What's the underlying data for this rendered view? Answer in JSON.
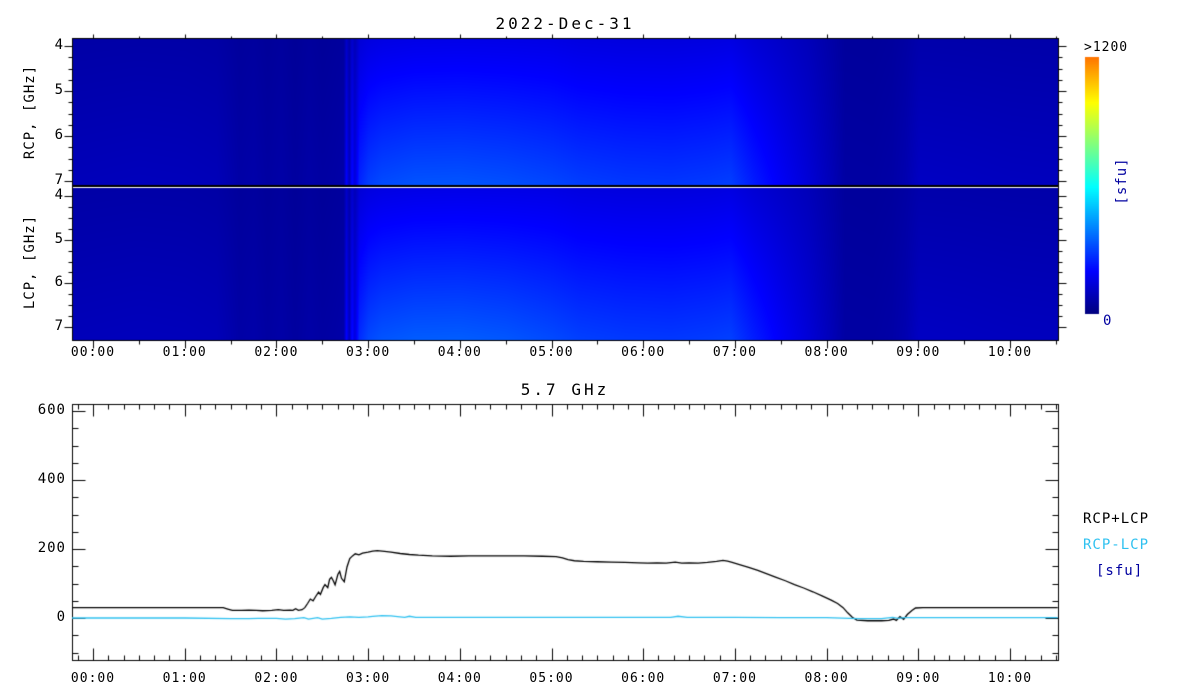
{
  "colors": {
    "background": "#ffffff",
    "axis": "#000000",
    "total_line": "#000000",
    "diff_line": "#2fc1f0",
    "unit_text": "#0000a0",
    "tick_text": "#000000"
  },
  "spectrogram": {
    "title": "2022-Dec-31",
    "rcp_axis_label": "RCP, [GHz]",
    "lcp_axis_label": "LCP, [GHz]",
    "freq_ticks": [
      {
        "f": 4,
        "label": "4"
      },
      {
        "f": 5,
        "label": "5"
      },
      {
        "f": 6,
        "label": "6"
      },
      {
        "f": 7,
        "label": "7"
      }
    ],
    "time_ticks": [
      {
        "h": 0,
        "label": "00:00"
      },
      {
        "h": 1,
        "label": "01:00"
      },
      {
        "h": 2,
        "label": "02:00"
      },
      {
        "h": 3,
        "label": "03:00"
      },
      {
        "h": 4,
        "label": "04:00"
      },
      {
        "h": 5,
        "label": "05:00"
      },
      {
        "h": 6,
        "label": "06:00"
      },
      {
        "h": 7,
        "label": "07:00"
      },
      {
        "h": 8,
        "label": "08:00"
      },
      {
        "h": 9,
        "label": "09:00"
      },
      {
        "h": 10,
        "label": "10:00"
      }
    ],
    "colorbar": {
      "max_label": ">1200",
      "min_label": "0",
      "unit_label": "[sfu]"
    }
  },
  "lineplot": {
    "title": "5.7 GHz",
    "y_ticks": [
      {
        "v": 600,
        "label": "600"
      },
      {
        "v": 400,
        "label": "400"
      },
      {
        "v": 200,
        "label": "200"
      },
      {
        "v": 0,
        "label": "0"
      }
    ],
    "time_ticks": [
      {
        "h": 0,
        "label": "00:00"
      },
      {
        "h": 1,
        "label": "01:00"
      },
      {
        "h": 2,
        "label": "02:00"
      },
      {
        "h": 3,
        "label": "03:00"
      },
      {
        "h": 4,
        "label": "04:00"
      },
      {
        "h": 5,
        "label": "05:00"
      },
      {
        "h": 6,
        "label": "06:00"
      },
      {
        "h": 7,
        "label": "07:00"
      },
      {
        "h": 8,
        "label": "08:00"
      },
      {
        "h": 9,
        "label": "09:00"
      },
      {
        "h": 10,
        "label": "10:00"
      }
    ],
    "legend": {
      "total": "RCP+LCP",
      "diff": "RCP-LCP",
      "unit": "[sfu]"
    }
  },
  "chart_data": [
    {
      "type": "heatmap",
      "title": "2022-Dec-31",
      "x_unit": "time UT (hours)",
      "x_range": [
        -0.24,
        10.52
      ],
      "freq_range_ghz": [
        4,
        7
      ],
      "freq_axis_reversed": true,
      "value_unit": "sfu",
      "color_scale": {
        "min": 0,
        "max": 1200,
        "palette": "jet",
        "max_label": ">1200"
      },
      "time_stops": [
        -0.25,
        0.5,
        1.0,
        1.35,
        1.5,
        1.6,
        1.75,
        1.9,
        2.05,
        2.2,
        2.35,
        2.5,
        2.62,
        2.7,
        2.73,
        2.76,
        2.79,
        2.82,
        2.85,
        2.9,
        3.0,
        3.15,
        3.5,
        4.0,
        4.5,
        5.0,
        5.3,
        5.8,
        6.3,
        6.7,
        6.95,
        7.2,
        7.5,
        7.8,
        8.05,
        8.2,
        8.5,
        8.7,
        8.85,
        9.0,
        9.5,
        10.0,
        10.55
      ],
      "rcp": {
        "top_4ghz": [
          60,
          62,
          61,
          58,
          50,
          44,
          48,
          40,
          46,
          38,
          46,
          40,
          44,
          46,
          48,
          115,
          62,
          125,
          85,
          135,
          148,
          155,
          160,
          162,
          160,
          157,
          150,
          146,
          145,
          148,
          152,
          132,
          112,
          90,
          62,
          44,
          43,
          47,
          55,
          68,
          67,
          65,
          64
        ],
        "bottom_7ghz": [
          90,
          94,
          92,
          88,
          72,
          60,
          66,
          54,
          62,
          50,
          62,
          54,
          58,
          62,
          66,
          200,
          88,
          215,
          140,
          255,
          295,
          315,
          328,
          330,
          322,
          308,
          295,
          285,
          282,
          288,
          295,
          240,
          185,
          135,
          88,
          55,
          54,
          60,
          75,
          105,
          102,
          98,
          96
        ]
      },
      "lcp": {
        "top_4ghz": [
          60,
          62,
          61,
          58,
          50,
          44,
          48,
          40,
          46,
          38,
          46,
          40,
          44,
          46,
          48,
          115,
          62,
          125,
          85,
          135,
          148,
          155,
          160,
          162,
          160,
          157,
          150,
          146,
          145,
          148,
          152,
          132,
          112,
          90,
          62,
          44,
          43,
          47,
          55,
          68,
          67,
          65,
          64
        ],
        "bottom_7ghz": [
          90,
          94,
          92,
          88,
          72,
          60,
          66,
          54,
          62,
          50,
          62,
          54,
          58,
          62,
          66,
          205,
          90,
          220,
          145,
          265,
          308,
          328,
          340,
          342,
          332,
          312,
          296,
          286,
          283,
          289,
          296,
          242,
          186,
          136,
          88,
          55,
          54,
          60,
          75,
          105,
          102,
          98,
          96
        ]
      }
    },
    {
      "type": "line",
      "title": "5.7 GHz",
      "ylabel": "[sfu]",
      "ylim": [
        -123,
        629
      ],
      "x_unit": "time UT (hours)",
      "x_range": [
        -0.24,
        10.52
      ],
      "series": [
        {
          "name": "RCP+LCP",
          "color_key": "total_line",
          "points": [
            [
              -0.24,
              30
            ],
            [
              0.6,
              30
            ],
            [
              1.2,
              30
            ],
            [
              1.42,
              30
            ],
            [
              1.47,
              26
            ],
            [
              1.52,
              22
            ],
            [
              1.62,
              22
            ],
            [
              1.7,
              23
            ],
            [
              1.78,
              22
            ],
            [
              1.85,
              21
            ],
            [
              1.95,
              22
            ],
            [
              2.02,
              24
            ],
            [
              2.08,
              22
            ],
            [
              2.15,
              23
            ],
            [
              2.18,
              22
            ],
            [
              2.21,
              27
            ],
            [
              2.24,
              22
            ],
            [
              2.28,
              24
            ],
            [
              2.31,
              30
            ],
            [
              2.34,
              42
            ],
            [
              2.37,
              55
            ],
            [
              2.4,
              50
            ],
            [
              2.43,
              63
            ],
            [
              2.46,
              75
            ],
            [
              2.48,
              68
            ],
            [
              2.51,
              88
            ],
            [
              2.53,
              97
            ],
            [
              2.56,
              88
            ],
            [
              2.58,
              112
            ],
            [
              2.6,
              118
            ],
            [
              2.62,
              108
            ],
            [
              2.64,
              96
            ],
            [
              2.67,
              126
            ],
            [
              2.69,
              135
            ],
            [
              2.71,
              115
            ],
            [
              2.74,
              105
            ],
            [
              2.77,
              148
            ],
            [
              2.8,
              172
            ],
            [
              2.83,
              180
            ],
            [
              2.86,
              186
            ],
            [
              2.9,
              183
            ],
            [
              2.94,
              188
            ],
            [
              3.0,
              191
            ],
            [
              3.05,
              194
            ],
            [
              3.1,
              195
            ],
            [
              3.18,
              193
            ],
            [
              3.25,
              191
            ],
            [
              3.35,
              187
            ],
            [
              3.45,
              184
            ],
            [
              3.55,
              182
            ],
            [
              3.7,
              180
            ],
            [
              3.9,
              179
            ],
            [
              4.1,
              180
            ],
            [
              4.3,
              180
            ],
            [
              4.5,
              180
            ],
            [
              4.7,
              180
            ],
            [
              4.9,
              179
            ],
            [
              5.05,
              178
            ],
            [
              5.12,
              174
            ],
            [
              5.18,
              169
            ],
            [
              5.25,
              166
            ],
            [
              5.35,
              164
            ],
            [
              5.5,
              163
            ],
            [
              5.65,
              162
            ],
            [
              5.8,
              161
            ],
            [
              5.95,
              160
            ],
            [
              6.05,
              159
            ],
            [
              6.15,
              160
            ],
            [
              6.25,
              159
            ],
            [
              6.35,
              162
            ],
            [
              6.42,
              159
            ],
            [
              6.5,
              160
            ],
            [
              6.6,
              159
            ],
            [
              6.7,
              161
            ],
            [
              6.8,
              164
            ],
            [
              6.87,
              167
            ],
            [
              6.92,
              165
            ],
            [
              6.97,
              161
            ],
            [
              7.05,
              155
            ],
            [
              7.15,
              147
            ],
            [
              7.25,
              138
            ],
            [
              7.35,
              128
            ],
            [
              7.45,
              118
            ],
            [
              7.55,
              108
            ],
            [
              7.65,
              97
            ],
            [
              7.75,
              87
            ],
            [
              7.85,
              76
            ],
            [
              7.95,
              64
            ],
            [
              8.05,
              52
            ],
            [
              8.12,
              42
            ],
            [
              8.18,
              30
            ],
            [
              8.23,
              15
            ],
            [
              8.28,
              2
            ],
            [
              8.33,
              -6
            ],
            [
              8.45,
              -8
            ],
            [
              8.6,
              -8
            ],
            [
              8.68,
              -7
            ],
            [
              8.73,
              -3
            ],
            [
              8.76,
              -7
            ],
            [
              8.8,
              4
            ],
            [
              8.84,
              -4
            ],
            [
              8.88,
              10
            ],
            [
              8.93,
              22
            ],
            [
              8.97,
              29
            ],
            [
              9.05,
              30
            ],
            [
              9.5,
              30
            ],
            [
              10.0,
              30
            ],
            [
              10.52,
              30
            ]
          ]
        },
        {
          "name": "RCP-LCP",
          "color_key": "diff_line",
          "points": [
            [
              -0.24,
              0
            ],
            [
              1.0,
              0
            ],
            [
              1.5,
              -2
            ],
            [
              1.7,
              -2
            ],
            [
              1.8,
              -1
            ],
            [
              2.0,
              -1
            ],
            [
              2.1,
              -3
            ],
            [
              2.2,
              -2
            ],
            [
              2.3,
              1
            ],
            [
              2.35,
              -3
            ],
            [
              2.45,
              1
            ],
            [
              2.5,
              -3
            ],
            [
              2.6,
              -1
            ],
            [
              2.7,
              2
            ],
            [
              2.8,
              3
            ],
            [
              2.9,
              2
            ],
            [
              3.0,
              3
            ],
            [
              3.05,
              5
            ],
            [
              3.15,
              7
            ],
            [
              3.25,
              6
            ],
            [
              3.32,
              4
            ],
            [
              3.4,
              2
            ],
            [
              3.45,
              5
            ],
            [
              3.52,
              2
            ],
            [
              4.0,
              2
            ],
            [
              4.5,
              2
            ],
            [
              5.0,
              2
            ],
            [
              5.5,
              2
            ],
            [
              6.0,
              2
            ],
            [
              6.3,
              2
            ],
            [
              6.38,
              5
            ],
            [
              6.48,
              2
            ],
            [
              7.0,
              2
            ],
            [
              7.5,
              1
            ],
            [
              8.0,
              1
            ],
            [
              8.25,
              -1
            ],
            [
              8.35,
              -2
            ],
            [
              8.6,
              -2
            ],
            [
              8.72,
              2
            ],
            [
              8.78,
              -1
            ],
            [
              8.85,
              1
            ],
            [
              9.0,
              1
            ],
            [
              9.5,
              1
            ],
            [
              10.52,
              1
            ]
          ]
        }
      ]
    }
  ]
}
